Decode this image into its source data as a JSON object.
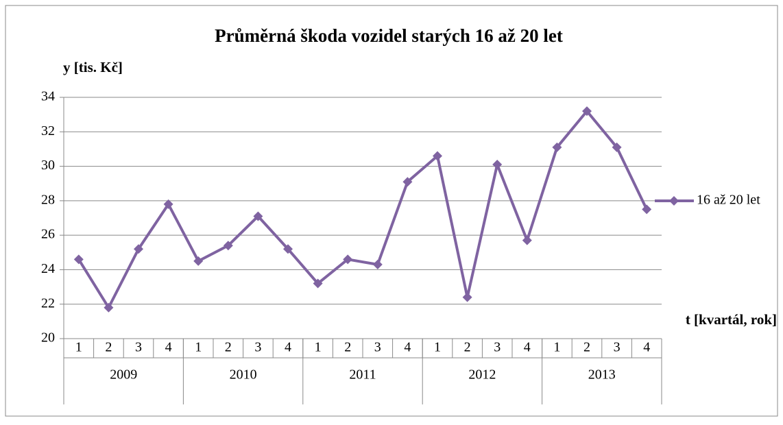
{
  "chart_data": {
    "type": "line",
    "title": "Průměrná škoda vozidel starých 16 až 20 let",
    "y_label": "y [tis. Kč]",
    "x_label": "t [kvartál, rok]",
    "categories": [
      "1",
      "2",
      "3",
      "4",
      "1",
      "2",
      "3",
      "4",
      "1",
      "2",
      "3",
      "4",
      "1",
      "2",
      "3",
      "4",
      "1",
      "2",
      "3",
      "4"
    ],
    "years": [
      "2009",
      "2010",
      "2011",
      "2012",
      "2013"
    ],
    "series": [
      {
        "name": "16 až 20 let",
        "color": "#7f63a1",
        "values": [
          24.6,
          21.8,
          25.2,
          27.8,
          24.5,
          25.4,
          27.1,
          25.2,
          23.2,
          24.6,
          24.3,
          29.1,
          30.6,
          22.4,
          30.1,
          25.7,
          31.1,
          33.2,
          31.1,
          27.5
        ]
      }
    ],
    "ylim": [
      20,
      34
    ],
    "yticks": [
      20,
      22,
      24,
      26,
      28,
      30,
      32,
      34
    ],
    "grid": true,
    "legend": "right"
  }
}
